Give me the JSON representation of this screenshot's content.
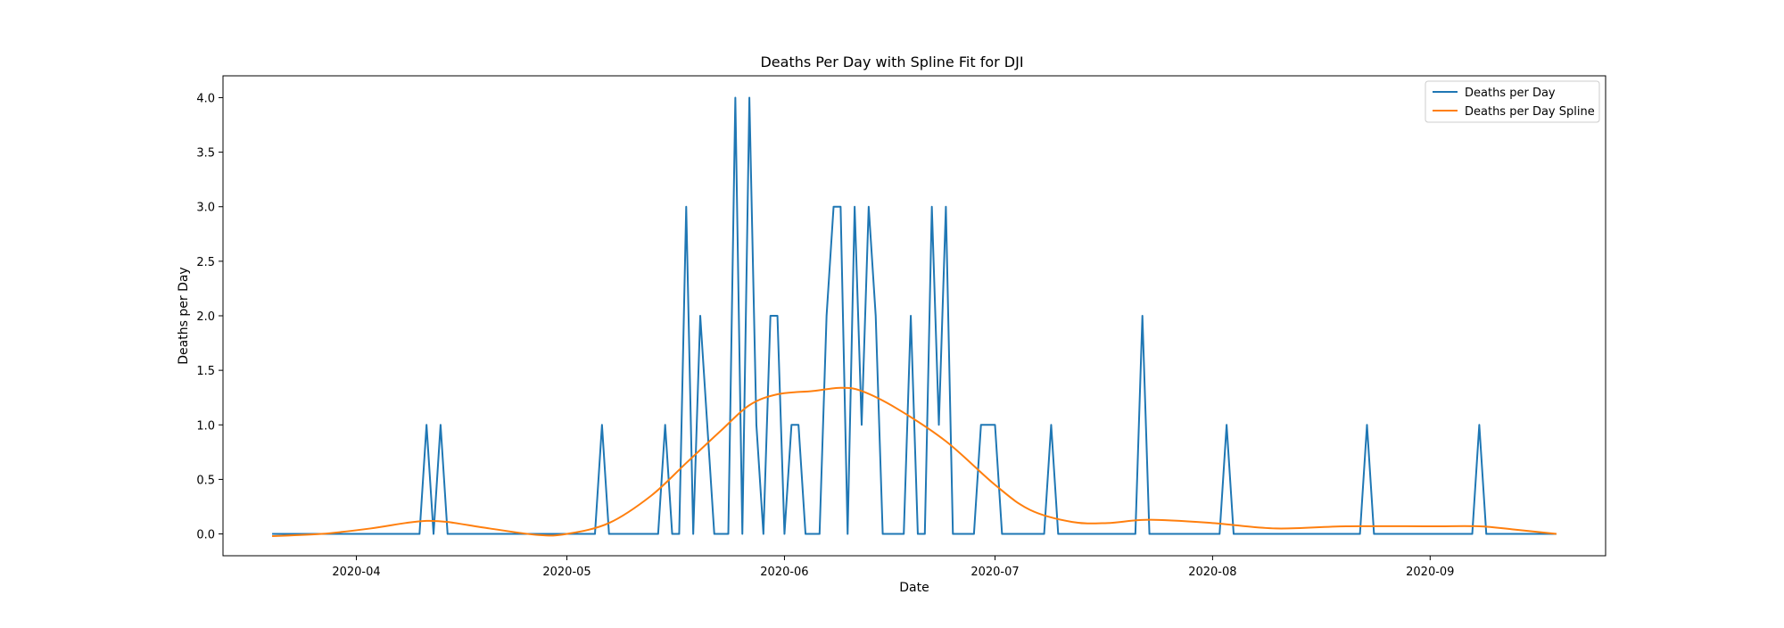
{
  "chart_data": {
    "type": "line",
    "title": "Deaths Per Day with Spline Fit for DJI",
    "xlabel": "Date",
    "ylabel": "Deaths per Day",
    "x_axis_type": "date",
    "xlim": [
      "2020-03-13",
      "2020-09-26"
    ],
    "ylim": [
      -0.2,
      4.2
    ],
    "xticks": [
      "2020-04-01",
      "2020-05-01",
      "2020-06-01",
      "2020-07-01",
      "2020-08-01",
      "2020-09-01"
    ],
    "xtick_labels": [
      "2020-04",
      "2020-05",
      "2020-06",
      "2020-07",
      "2020-08",
      "2020-09"
    ],
    "yticks": [
      0.0,
      0.5,
      1.0,
      1.5,
      2.0,
      2.5,
      3.0,
      3.5,
      4.0
    ],
    "ytick_labels": [
      "0.0",
      "0.5",
      "1.0",
      "1.5",
      "2.0",
      "2.5",
      "3.0",
      "3.5",
      "4.0"
    ],
    "grid": false,
    "legend_position": "top-right",
    "series": [
      {
        "name": "Deaths per Day",
        "color": "#1f77b4",
        "points": [
          [
            "2020-03-20",
            0
          ],
          [
            "2020-04-10",
            0
          ],
          [
            "2020-04-11",
            1
          ],
          [
            "2020-04-12",
            0
          ],
          [
            "2020-04-13",
            1
          ],
          [
            "2020-04-14",
            0
          ],
          [
            "2020-05-05",
            0
          ],
          [
            "2020-05-06",
            1
          ],
          [
            "2020-05-07",
            0
          ],
          [
            "2020-05-14",
            0
          ],
          [
            "2020-05-15",
            1
          ],
          [
            "2020-05-16",
            0
          ],
          [
            "2020-05-17",
            0
          ],
          [
            "2020-05-18",
            3
          ],
          [
            "2020-05-19",
            0
          ],
          [
            "2020-05-20",
            2
          ],
          [
            "2020-05-21",
            1
          ],
          [
            "2020-05-22",
            0
          ],
          [
            "2020-05-24",
            0
          ],
          [
            "2020-05-25",
            4
          ],
          [
            "2020-05-26",
            0
          ],
          [
            "2020-05-27",
            4
          ],
          [
            "2020-05-28",
            1
          ],
          [
            "2020-05-29",
            0
          ],
          [
            "2020-05-30",
            2
          ],
          [
            "2020-05-31",
            2
          ],
          [
            "2020-06-01",
            0
          ],
          [
            "2020-06-02",
            1
          ],
          [
            "2020-06-03",
            1
          ],
          [
            "2020-06-04",
            0
          ],
          [
            "2020-06-06",
            0
          ],
          [
            "2020-06-07",
            2
          ],
          [
            "2020-06-08",
            3
          ],
          [
            "2020-06-09",
            3
          ],
          [
            "2020-06-10",
            0
          ],
          [
            "2020-06-11",
            3
          ],
          [
            "2020-06-12",
            1
          ],
          [
            "2020-06-13",
            3
          ],
          [
            "2020-06-14",
            2
          ],
          [
            "2020-06-15",
            0
          ],
          [
            "2020-06-18",
            0
          ],
          [
            "2020-06-19",
            2
          ],
          [
            "2020-06-20",
            0
          ],
          [
            "2020-06-21",
            0
          ],
          [
            "2020-06-22",
            3
          ],
          [
            "2020-06-23",
            1
          ],
          [
            "2020-06-24",
            3
          ],
          [
            "2020-06-25",
            0
          ],
          [
            "2020-06-28",
            0
          ],
          [
            "2020-06-29",
            1
          ],
          [
            "2020-07-01",
            1
          ],
          [
            "2020-07-02",
            0
          ],
          [
            "2020-07-08",
            0
          ],
          [
            "2020-07-09",
            1
          ],
          [
            "2020-07-10",
            0
          ],
          [
            "2020-07-21",
            0
          ],
          [
            "2020-07-22",
            2
          ],
          [
            "2020-07-23",
            0
          ],
          [
            "2020-08-02",
            0
          ],
          [
            "2020-08-03",
            1
          ],
          [
            "2020-08-04",
            0
          ],
          [
            "2020-08-22",
            0
          ],
          [
            "2020-08-23",
            1
          ],
          [
            "2020-08-24",
            0
          ],
          [
            "2020-09-07",
            0
          ],
          [
            "2020-09-08",
            1
          ],
          [
            "2020-09-09",
            0
          ],
          [
            "2020-09-19",
            0
          ]
        ]
      },
      {
        "name": "Deaths per Day Spline",
        "color": "#ff7f0e",
        "smooth": true,
        "points": [
          [
            "2020-03-20",
            -0.02
          ],
          [
            "2020-03-27",
            0.0
          ],
          [
            "2020-04-03",
            0.05
          ],
          [
            "2020-04-08",
            0.1
          ],
          [
            "2020-04-11",
            0.12
          ],
          [
            "2020-04-14",
            0.11
          ],
          [
            "2020-04-20",
            0.05
          ],
          [
            "2020-04-27",
            -0.01
          ],
          [
            "2020-05-01",
            0.0
          ],
          [
            "2020-05-07",
            0.1
          ],
          [
            "2020-05-13",
            0.35
          ],
          [
            "2020-05-18",
            0.65
          ],
          [
            "2020-05-23",
            0.95
          ],
          [
            "2020-05-27",
            1.18
          ],
          [
            "2020-05-31",
            1.28
          ],
          [
            "2020-06-05",
            1.31
          ],
          [
            "2020-06-09",
            1.34
          ],
          [
            "2020-06-12",
            1.31
          ],
          [
            "2020-06-17",
            1.15
          ],
          [
            "2020-06-24",
            0.85
          ],
          [
            "2020-07-01",
            0.45
          ],
          [
            "2020-07-06",
            0.22
          ],
          [
            "2020-07-12",
            0.11
          ],
          [
            "2020-07-17",
            0.1
          ],
          [
            "2020-07-23",
            0.13
          ],
          [
            "2020-08-01",
            0.1
          ],
          [
            "2020-08-10",
            0.05
          ],
          [
            "2020-08-20",
            0.07
          ],
          [
            "2020-09-01",
            0.07
          ],
          [
            "2020-09-08",
            0.07
          ],
          [
            "2020-09-13",
            0.04
          ],
          [
            "2020-09-19",
            0.0
          ]
        ]
      }
    ]
  }
}
